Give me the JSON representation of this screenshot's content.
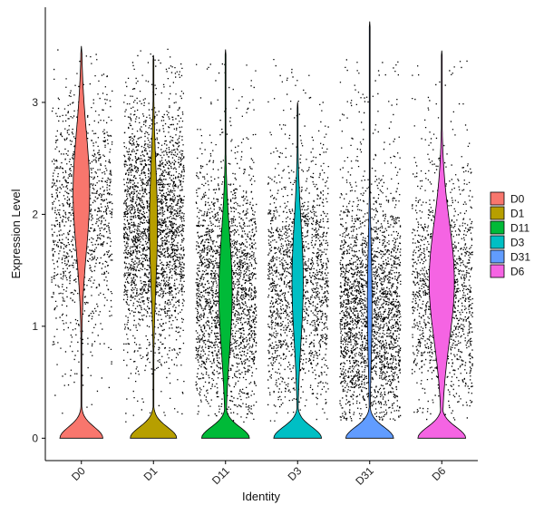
{
  "chart_data": {
    "type": "violin",
    "xlabel": "Identity",
    "ylabel": "Expression Level",
    "ylim": [
      -0.2,
      3.85
    ],
    "yticks": [
      0,
      1,
      2,
      3
    ],
    "grid": false,
    "legend_position": "right",
    "groups": [
      {
        "name": "D0",
        "color": "#F8766D",
        "max": 3.5,
        "tail_width": 0.65,
        "body_peak": 2.2,
        "body_width": 0.25,
        "point_density": 0.45,
        "point_mode": 2.0
      },
      {
        "name": "D1",
        "color": "#B79F00",
        "max": 3.42,
        "tail_width": 0.7,
        "body_peak": 1.9,
        "body_width": 0.12,
        "point_density": 1.0,
        "point_mode": 1.9
      },
      {
        "name": "D11",
        "color": "#00BA38",
        "max": 3.47,
        "tail_width": 0.72,
        "body_peak": 1.3,
        "body_width": 0.2,
        "point_density": 0.85,
        "point_mode": 1.3
      },
      {
        "name": "D3",
        "color": "#00BFC4",
        "max": 3.0,
        "tail_width": 0.72,
        "body_peak": 1.4,
        "body_width": 0.17,
        "point_density": 0.65,
        "point_mode": 1.4
      },
      {
        "name": "D31",
        "color": "#619CFF",
        "max": 3.72,
        "tail_width": 0.72,
        "body_peak": 1.2,
        "body_width": 0.07,
        "point_density": 1.0,
        "point_mode": 1.1
      },
      {
        "name": "D6",
        "color": "#F564E3",
        "max": 3.46,
        "tail_width": 0.72,
        "body_peak": 1.4,
        "body_width": 0.38,
        "point_density": 0.55,
        "point_mode": 1.3
      }
    ]
  }
}
